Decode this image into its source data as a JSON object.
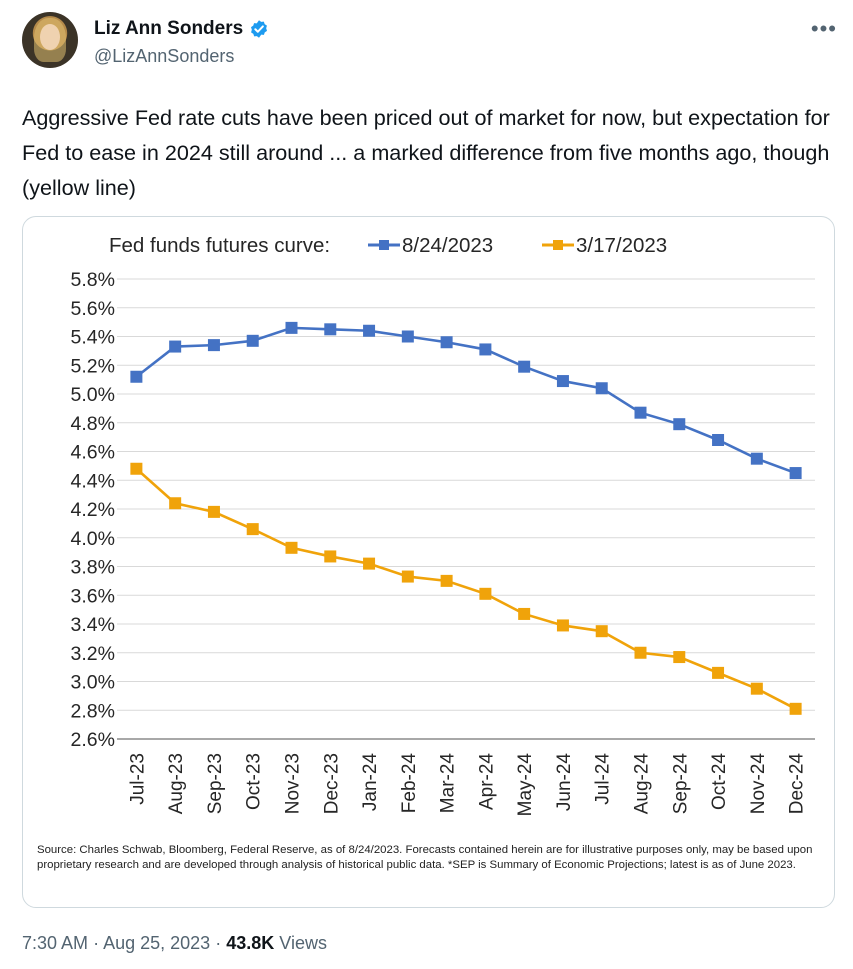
{
  "author": {
    "name": "Liz Ann Sonders",
    "handle": "@LizAnnSonders",
    "verified_color": "#1d9bf0"
  },
  "tweet": {
    "text": "Aggressive Fed rate cuts have been priced out of market for now, but expectation for Fed to ease in 2024 still around ... a marked difference from five months ago, though (yellow line)"
  },
  "chart_data": {
    "type": "line",
    "title": "Fed funds futures curve:",
    "categories": [
      "Jul-23",
      "Aug-23",
      "Sep-23",
      "Oct-23",
      "Nov-23",
      "Dec-23",
      "Jan-24",
      "Feb-24",
      "Mar-24",
      "Apr-24",
      "May-24",
      "Jun-24",
      "Jul-24",
      "Aug-24",
      "Sep-24",
      "Oct-24",
      "Nov-24",
      "Dec-24"
    ],
    "series": [
      {
        "name": "8/24/2023",
        "color": "#4472c4",
        "values": [
          5.12,
          5.33,
          5.34,
          5.37,
          5.46,
          5.45,
          5.44,
          5.4,
          5.36,
          5.31,
          5.19,
          5.09,
          5.04,
          4.87,
          4.79,
          4.68,
          4.55,
          4.45
        ]
      },
      {
        "name": "3/17/2023",
        "color": "#f0a30a",
        "values": [
          4.48,
          4.24,
          4.18,
          4.06,
          3.93,
          3.87,
          3.82,
          3.73,
          3.7,
          3.61,
          3.47,
          3.39,
          3.35,
          3.2,
          3.17,
          3.06,
          2.95,
          2.81
        ]
      }
    ],
    "ylim": [
      2.6,
      5.8
    ],
    "yticks": [
      "5.8%",
      "5.6%",
      "5.4%",
      "5.2%",
      "5.0%",
      "4.8%",
      "4.6%",
      "4.4%",
      "4.2%",
      "4.0%",
      "3.8%",
      "3.6%",
      "3.4%",
      "3.2%",
      "3.0%",
      "2.8%",
      "2.6%"
    ],
    "grid": true,
    "legend": "top",
    "source": "Source: Charles Schwab, Bloomberg, Federal Reserve, as of 8/24/2023. Forecasts contained herein are for illustrative purposes only, may be based upon proprietary research and are developed through analysis of historical public data. *SEP is Summary of Economic Projections; latest is as of June 2023."
  },
  "footer": {
    "time": "7:30 AM",
    "sep1": "·",
    "date": "Aug 25, 2023",
    "sep2": "·",
    "views_count": "43.8K",
    "views_label": "Views"
  }
}
